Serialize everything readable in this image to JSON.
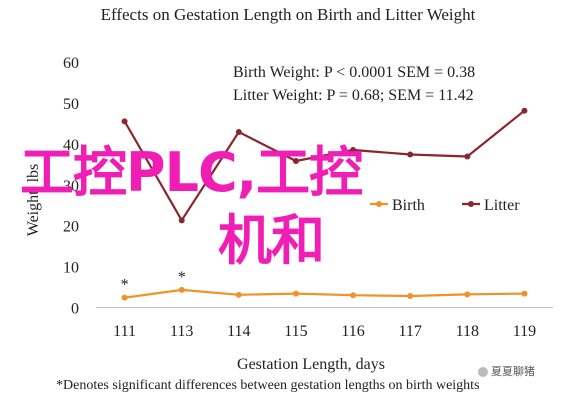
{
  "chart_data": {
    "type": "line",
    "title": "Effects on Gestation Length on Birth and Litter Weight",
    "xlabel": "Gestation Length, days",
    "ylabel": "Weight, lbs",
    "footnote": "*Denotes significant differences between gestation lengths on birth weights",
    "annotations": [
      "Birth Weight: P < 0.0001 SEM = 0.38",
      "Litter Weight: P = 0.68; SEM = 11.42"
    ],
    "categories": [
      "111",
      "113",
      "114",
      "115",
      "116",
      "117",
      "118",
      "119"
    ],
    "yticks": [
      0,
      10,
      20,
      30,
      40,
      50,
      60
    ],
    "ylim": [
      0,
      60
    ],
    "grid": false,
    "legend_position": "center-right",
    "series": [
      {
        "name": "Birth",
        "color": "#f0922a",
        "marker": "circle",
        "values": [
          2.4,
          4.3,
          3.1,
          3.4,
          3.0,
          2.8,
          3.2,
          3.4
        ]
      },
      {
        "name": "Litter",
        "color": "#8b2630",
        "marker": "circle",
        "values": [
          45.5,
          21.3,
          42.9,
          35.8,
          38.5,
          37.4,
          36.9,
          48.1
        ]
      }
    ],
    "significance_marks": [
      {
        "category": "111",
        "label": "*"
      },
      {
        "category": "113",
        "label": "*"
      }
    ]
  },
  "watermark": {
    "line1": "工控PLC,工控",
    "line2": "机和"
  },
  "badge": {
    "text": "夏夏聊猪"
  }
}
